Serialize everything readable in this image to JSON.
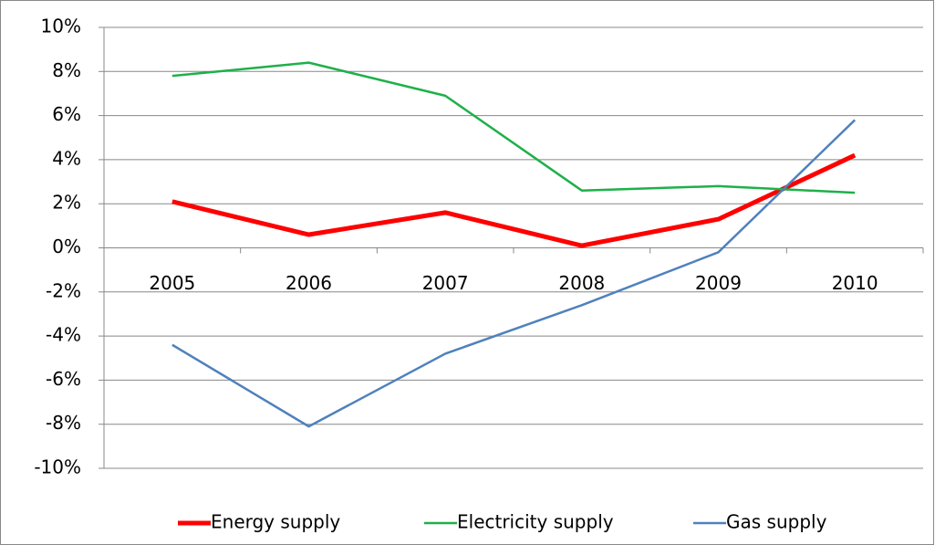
{
  "chart_data": {
    "type": "line",
    "categories": [
      "2005",
      "2006",
      "2007",
      "2008",
      "2009",
      "2010"
    ],
    "series": [
      {
        "name": "Energy supply",
        "color": "#ff0000",
        "values": [
          2.1,
          0.6,
          1.6,
          0.1,
          1.3,
          4.2
        ]
      },
      {
        "name": "Electricity supply",
        "color": "#1fb04a",
        "values": [
          7.8,
          8.4,
          6.9,
          2.6,
          2.8,
          2.5
        ]
      },
      {
        "name": "Gas supply",
        "color": "#4f81bd",
        "values": [
          -4.4,
          -8.1,
          -4.8,
          -2.6,
          -0.2,
          5.8
        ]
      }
    ],
    "ylim": [
      -10,
      10
    ],
    "yticks": [
      {
        "value": -10,
        "label": "-10%"
      },
      {
        "value": -8,
        "label": "-8%"
      },
      {
        "value": -6,
        "label": "-6%"
      },
      {
        "value": -4,
        "label": "-4%"
      },
      {
        "value": -2,
        "label": "-2%"
      },
      {
        "value": 0,
        "label": "0%"
      },
      {
        "value": 2,
        "label": "2%"
      },
      {
        "value": 4,
        "label": "4%"
      },
      {
        "value": 6,
        "label": "6%"
      },
      {
        "value": 8,
        "label": "8%"
      },
      {
        "value": 10,
        "label": "10%"
      }
    ],
    "grid": true,
    "legend": "bottom"
  }
}
